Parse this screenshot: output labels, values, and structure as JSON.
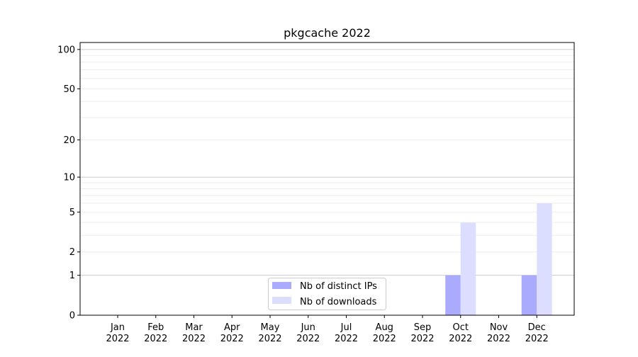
{
  "chart_data": {
    "type": "bar",
    "title": "pkgcache 2022",
    "xlabel": "",
    "ylabel": "",
    "yscale": "log(1+y)",
    "ylim": [
      0,
      113
    ],
    "grid": true,
    "legend_position": "bottom-center",
    "categories": [
      "Jan\n2022",
      "Feb\n2022",
      "Mar\n2022",
      "Apr\n2022",
      "May\n2022",
      "Jun\n2022",
      "Jul\n2022",
      "Aug\n2022",
      "Sep\n2022",
      "Oct\n2022",
      "Nov\n2022",
      "Dec\n2022"
    ],
    "y_ticks": [
      0,
      1,
      2,
      5,
      10,
      20,
      50,
      100
    ],
    "series": [
      {
        "name": "Nb of distinct IPs",
        "color": "#aaaaff",
        "values": [
          0,
          0,
          0,
          0,
          0,
          0,
          0,
          0,
          0,
          1,
          0,
          1
        ]
      },
      {
        "name": "Nb of downloads",
        "color": "#ddddff",
        "values": [
          0,
          0,
          0,
          0,
          0,
          0,
          0,
          0,
          0,
          4,
          0,
          6
        ]
      }
    ]
  }
}
